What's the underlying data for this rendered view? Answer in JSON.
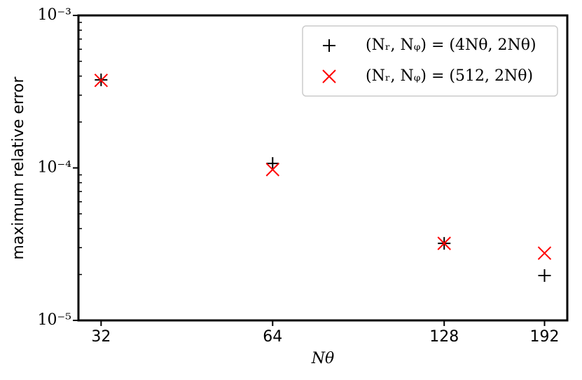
{
  "chart_data": {
    "type": "scatter",
    "x": [
      32,
      64,
      128,
      192
    ],
    "xlabel": "Nθ",
    "ylabel": "maximum relative error",
    "xscale": "log",
    "yscale": "log",
    "xlim": [
      29.2,
      210.5
    ],
    "ylim": [
      1e-05,
      0.001
    ],
    "xticks": [
      32,
      64,
      128,
      192
    ],
    "yticks": [
      {
        "value": 1e-05,
        "label": "10⁻⁵"
      },
      {
        "value": 0.0001,
        "label": "10⁻⁴"
      },
      {
        "value": 0.001,
        "label": "10⁻³"
      }
    ],
    "legend": "upper right",
    "series": [
      {
        "name": "(Nᵣ, Nᵩ) = (4Nθ, 2Nθ)",
        "color": "#000000",
        "marker": "+",
        "values": [
          0.000378,
          0.000107,
          3.2e-05,
          1.97e-05
        ]
      },
      {
        "name": "(Nᵣ, Nᵩ) = (512, 2Nθ)",
        "color": "#ff0000",
        "marker": "x",
        "values": [
          0.000375,
          9.75e-05,
          3.2e-05,
          2.76e-05
        ]
      }
    ]
  }
}
